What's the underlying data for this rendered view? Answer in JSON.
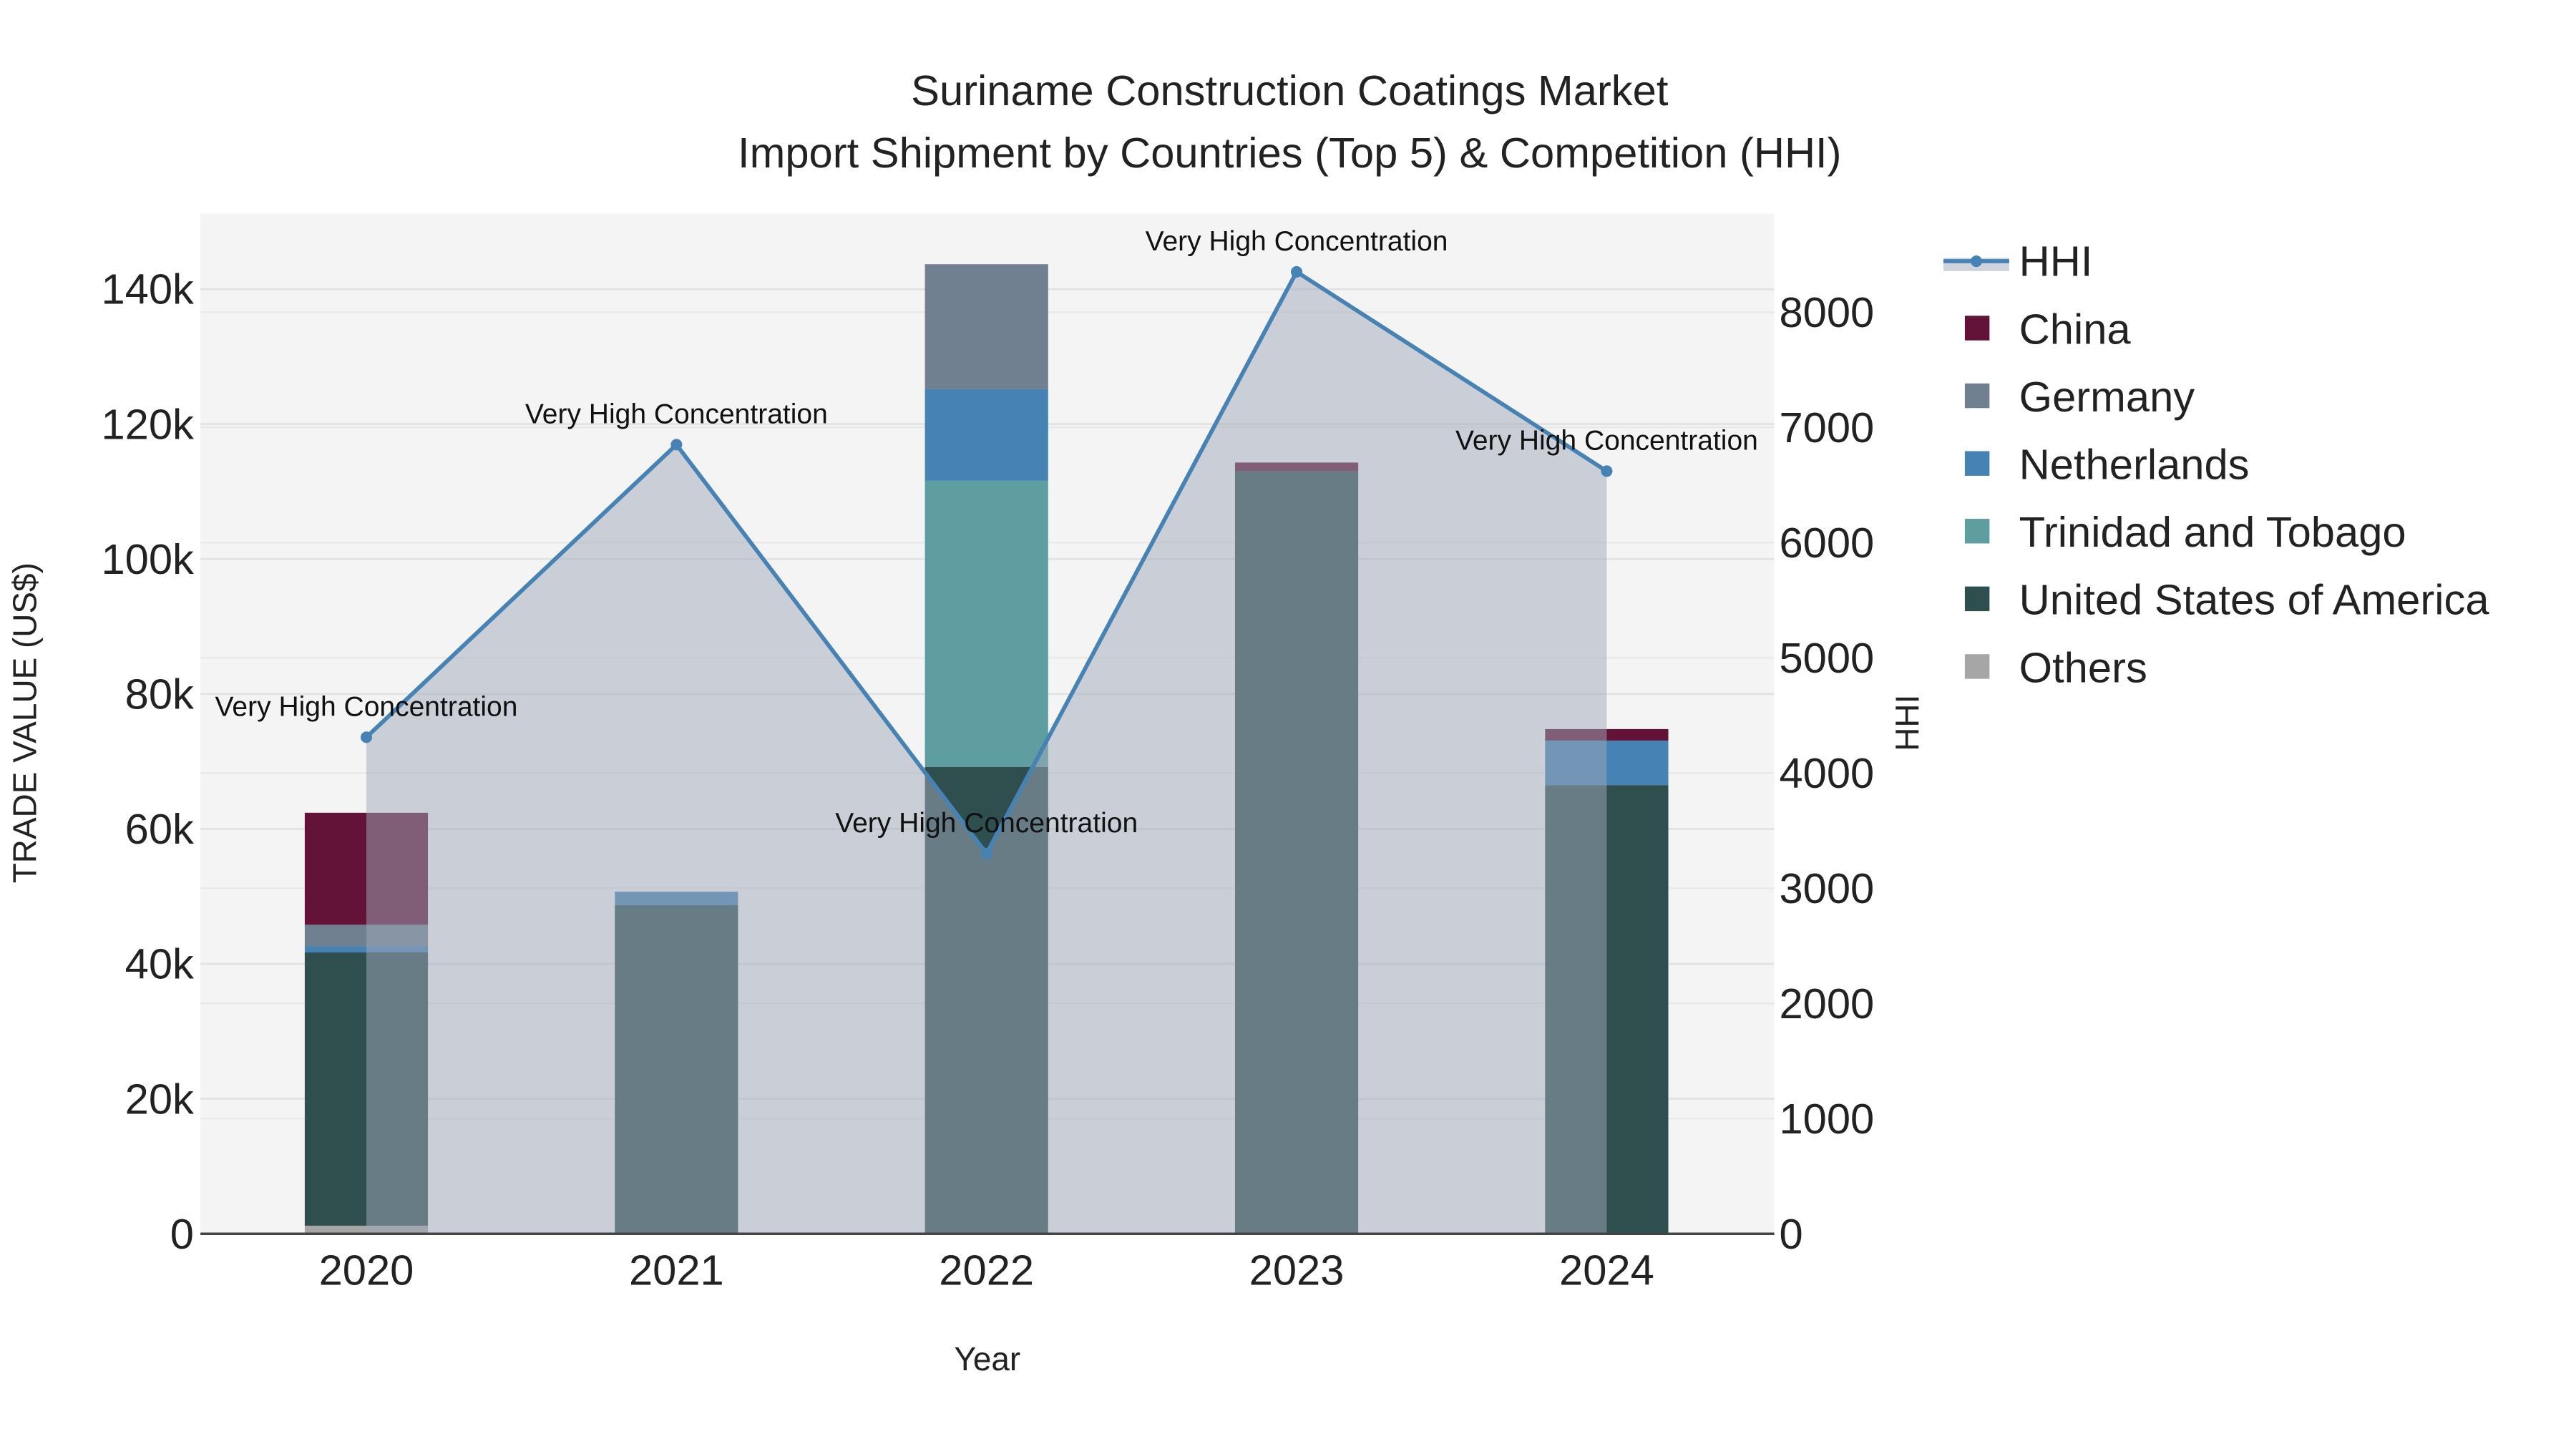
{
  "chart_data": {
    "type": "bar",
    "title_line1": "Suriname Construction Coatings Market",
    "title_line2": "Import Shipment by Countries (Top 5) & Competition (HHI)",
    "xlabel": "Year",
    "ylabel": "TRADE VALUE (US$)",
    "y2label": "HHI",
    "categories": [
      "2020",
      "2021",
      "2022",
      "2023",
      "2024"
    ],
    "ylim": [
      0,
      150000
    ],
    "y_ticks": [
      0,
      20000,
      40000,
      60000,
      80000,
      100000,
      120000,
      140000
    ],
    "y_tick_labels": [
      "0",
      "20k",
      "40k",
      "60k",
      "80k",
      "100k",
      "120k",
      "140k"
    ],
    "y2lim": [
      0,
      8850
    ],
    "y2_ticks": [
      0,
      1000,
      2000,
      3000,
      4000,
      5000,
      6000,
      7000,
      8000
    ],
    "y2_tick_labels": [
      "0",
      "1000",
      "2000",
      "3000",
      "4000",
      "5000",
      "6000",
      "7000",
      "8000"
    ],
    "stacked": true,
    "series": [
      {
        "name": "Others",
        "color": "#a6a6a6",
        "values": [
          1200,
          0,
          0,
          0,
          0
        ]
      },
      {
        "name": "United States of America",
        "color": "#2f4f4f",
        "values": [
          40500,
          48700,
          69200,
          113000,
          66500
        ]
      },
      {
        "name": "Trinidad and Tobago",
        "color": "#5f9ea0",
        "values": [
          0,
          0,
          42400,
          0,
          0
        ]
      },
      {
        "name": "Netherlands",
        "color": "#4682b4",
        "values": [
          900,
          2000,
          13600,
          0,
          6600
        ]
      },
      {
        "name": "Germany",
        "color": "#708090",
        "values": [
          3200,
          0,
          18500,
          0,
          0
        ]
      },
      {
        "name": "China",
        "color": "#621337",
        "values": [
          16600,
          0,
          0,
          1300,
          1700
        ]
      }
    ],
    "hhi": {
      "name": "HHI",
      "color": "#4682b4",
      "values": [
        4310,
        6850,
        3300,
        8350,
        6620
      ],
      "annotations": [
        "Very High Concentration",
        "Very High Concentration",
        "Very High Concentration",
        "Very High Concentration",
        "Very High Concentration"
      ]
    },
    "legend": [
      "HHI",
      "China",
      "Germany",
      "Netherlands",
      "Trinidad and Tobago",
      "United States of America",
      "Others"
    ],
    "legend_placement": "right",
    "grid": true
  }
}
